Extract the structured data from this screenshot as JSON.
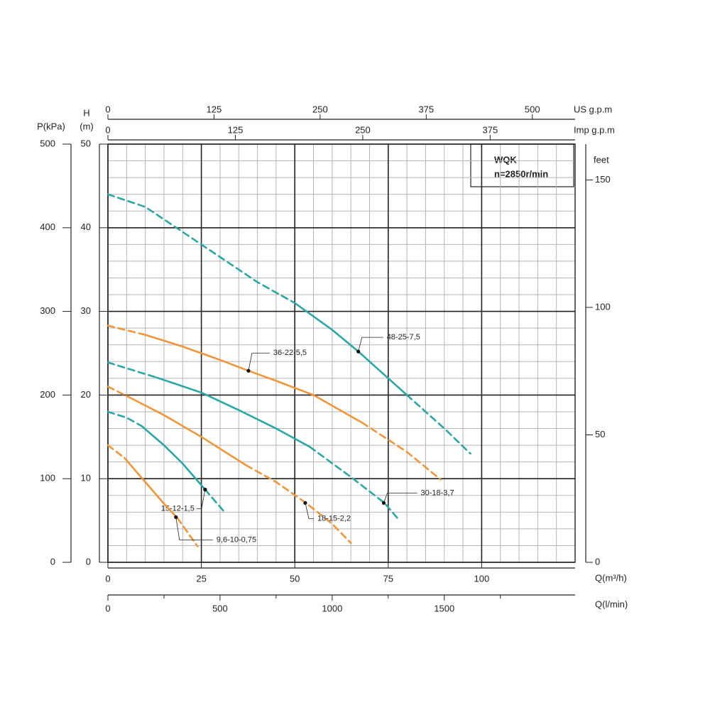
{
  "chart_data": {
    "type": "line",
    "title": "WQK",
    "subtitle": "n=2850r/min",
    "xlabel": "Q(m³/h)",
    "xlim": [
      0,
      125
    ],
    "xticks": [
      0,
      25,
      50,
      75,
      100
    ],
    "xminorticks": [
      0,
      5,
      10,
      15,
      20,
      25,
      30,
      35,
      40,
      45,
      50,
      55,
      60,
      65,
      70,
      75,
      80,
      85,
      90,
      95,
      100,
      105,
      110,
      115,
      120,
      125
    ],
    "ylabel": [
      "H",
      "(m)"
    ],
    "ylim": [
      0,
      50
    ],
    "yticks": [
      0,
      10,
      20,
      30,
      40,
      50
    ],
    "yminorticks": [
      0,
      2,
      4,
      6,
      8,
      10,
      12,
      14,
      16,
      18,
      20,
      22,
      24,
      26,
      28,
      30,
      32,
      34,
      36,
      38,
      40,
      42,
      44,
      46,
      48,
      50
    ],
    "grid": true,
    "secondary_axes": [
      {
        "side": "left",
        "label": "P(kPa)",
        "lim": [
          0,
          500
        ],
        "ticks": [
          0,
          100,
          200,
          300,
          400,
          500
        ]
      },
      {
        "side": "right",
        "label": "feet",
        "lim": [
          0,
          164.04
        ],
        "ticks": [
          0,
          50,
          100,
          150
        ]
      },
      {
        "side": "top",
        "label": "US g.p.m",
        "lim": [
          0,
          550.4
        ],
        "ticks": [
          0,
          125,
          250,
          375,
          500
        ]
      },
      {
        "side": "top",
        "label": "Imp g.p.m",
        "lim": [
          0,
          458.3
        ],
        "ticks": [
          0,
          125,
          250,
          375
        ]
      },
      {
        "side": "bottom",
        "label": "Q(l/min)",
        "lim": [
          0,
          2083.3
        ],
        "ticks": [
          0,
          500,
          1000,
          1500
        ],
        "minorticks": [
          250,
          750,
          1250,
          1750
        ]
      }
    ],
    "series": [
      {
        "name": "48-25-7,5",
        "color": "#2aa6a6",
        "point": {
          "x": 67,
          "y": 25.2
        },
        "segments": [
          {
            "style": "dashed",
            "x": [
              0,
              10,
              20,
              30,
              40,
              50
            ],
            "values": [
              44,
              42.5,
              39.5,
              36.5,
              33.5,
              31
            ]
          },
          {
            "style": "solid",
            "x": [
              50,
              60,
              67,
              75,
              80
            ],
            "values": [
              31,
              27.8,
              25.2,
              22,
              20
            ]
          },
          {
            "style": "dashed",
            "x": [
              80,
              90,
              97
            ],
            "values": [
              20,
              16,
              13
            ]
          }
        ]
      },
      {
        "name": "36-22-5,5",
        "color": "#f0963a",
        "point": {
          "x": 37.6,
          "y": 22.9
        },
        "segments": [
          {
            "style": "dashed",
            "x": [
              0,
              10
            ],
            "values": [
              28.3,
              27.2
            ]
          },
          {
            "style": "solid",
            "x": [
              10,
              20,
              30,
              37.6,
              45,
              55,
              68
            ],
            "values": [
              27.2,
              25.8,
              24.2,
              22.9,
              21.7,
              20,
              16.7
            ]
          },
          {
            "style": "dashed",
            "x": [
              68,
              80,
              89
            ],
            "values": [
              16.7,
              13.2,
              9.9
            ]
          }
        ]
      },
      {
        "name": "30-18-3,7",
        "color": "#2aa6a6",
        "point": {
          "x": 73.8,
          "y": 7.1
        },
        "segments": [
          {
            "style": "dashed",
            "x": [
              0,
              13
            ],
            "values": [
              23.9,
              22.1
            ]
          },
          {
            "style": "solid",
            "x": [
              13,
              25,
              35,
              45,
              54
            ],
            "values": [
              22.1,
              20.3,
              18.2,
              16,
              13.8
            ]
          },
          {
            "style": "dashed",
            "x": [
              54,
              65,
              74,
              78
            ],
            "values": [
              13.8,
              10.2,
              7.1,
              5
            ]
          }
        ]
      },
      {
        "name": "18-15-2,2",
        "color": "#f0963a",
        "point": {
          "x": 52.8,
          "y": 7.1
        },
        "segments": [
          {
            "style": "dashed",
            "x": [
              0,
              5
            ],
            "values": [
              21,
              19.9
            ]
          },
          {
            "style": "solid",
            "x": [
              5,
              15,
              25,
              37
            ],
            "values": [
              19.9,
              17.6,
              15,
              11.6
            ]
          },
          {
            "style": "dashed",
            "x": [
              37,
              45,
              53,
              60,
              65
            ],
            "values": [
              11.6,
              9.6,
              7.1,
              4.6,
              2.3
            ]
          }
        ]
      },
      {
        "name": "15-12-1,5",
        "color": "#2aa6a6",
        "point": {
          "x": 26,
          "y": 8.7
        },
        "segments": [
          {
            "style": "dashed",
            "x": [
              0,
              5,
              9
            ],
            "values": [
              18,
              17.3,
              16.3
            ]
          },
          {
            "style": "solid",
            "x": [
              9,
              15,
              20,
              26
            ],
            "values": [
              16.3,
              14,
              11.8,
              8.7
            ]
          },
          {
            "style": "dashed",
            "x": [
              26,
              31
            ],
            "values": [
              8.7,
              6.1
            ]
          }
        ]
      },
      {
        "name": "9,6-10-0,75",
        "color": "#f0963a",
        "point": {
          "x": 18.2,
          "y": 5.4
        },
        "segments": [
          {
            "style": "dashed",
            "x": [
              0,
              4.4
            ],
            "values": [
              14,
              12.5
            ]
          },
          {
            "style": "solid",
            "x": [
              4.4,
              10,
              15,
              18.6
            ],
            "values": [
              12.5,
              9.6,
              7,
              5.3
            ]
          },
          {
            "style": "dashed",
            "x": [
              18.6,
              24
            ],
            "values": [
              5.3,
              1.9
            ]
          }
        ]
      }
    ]
  }
}
